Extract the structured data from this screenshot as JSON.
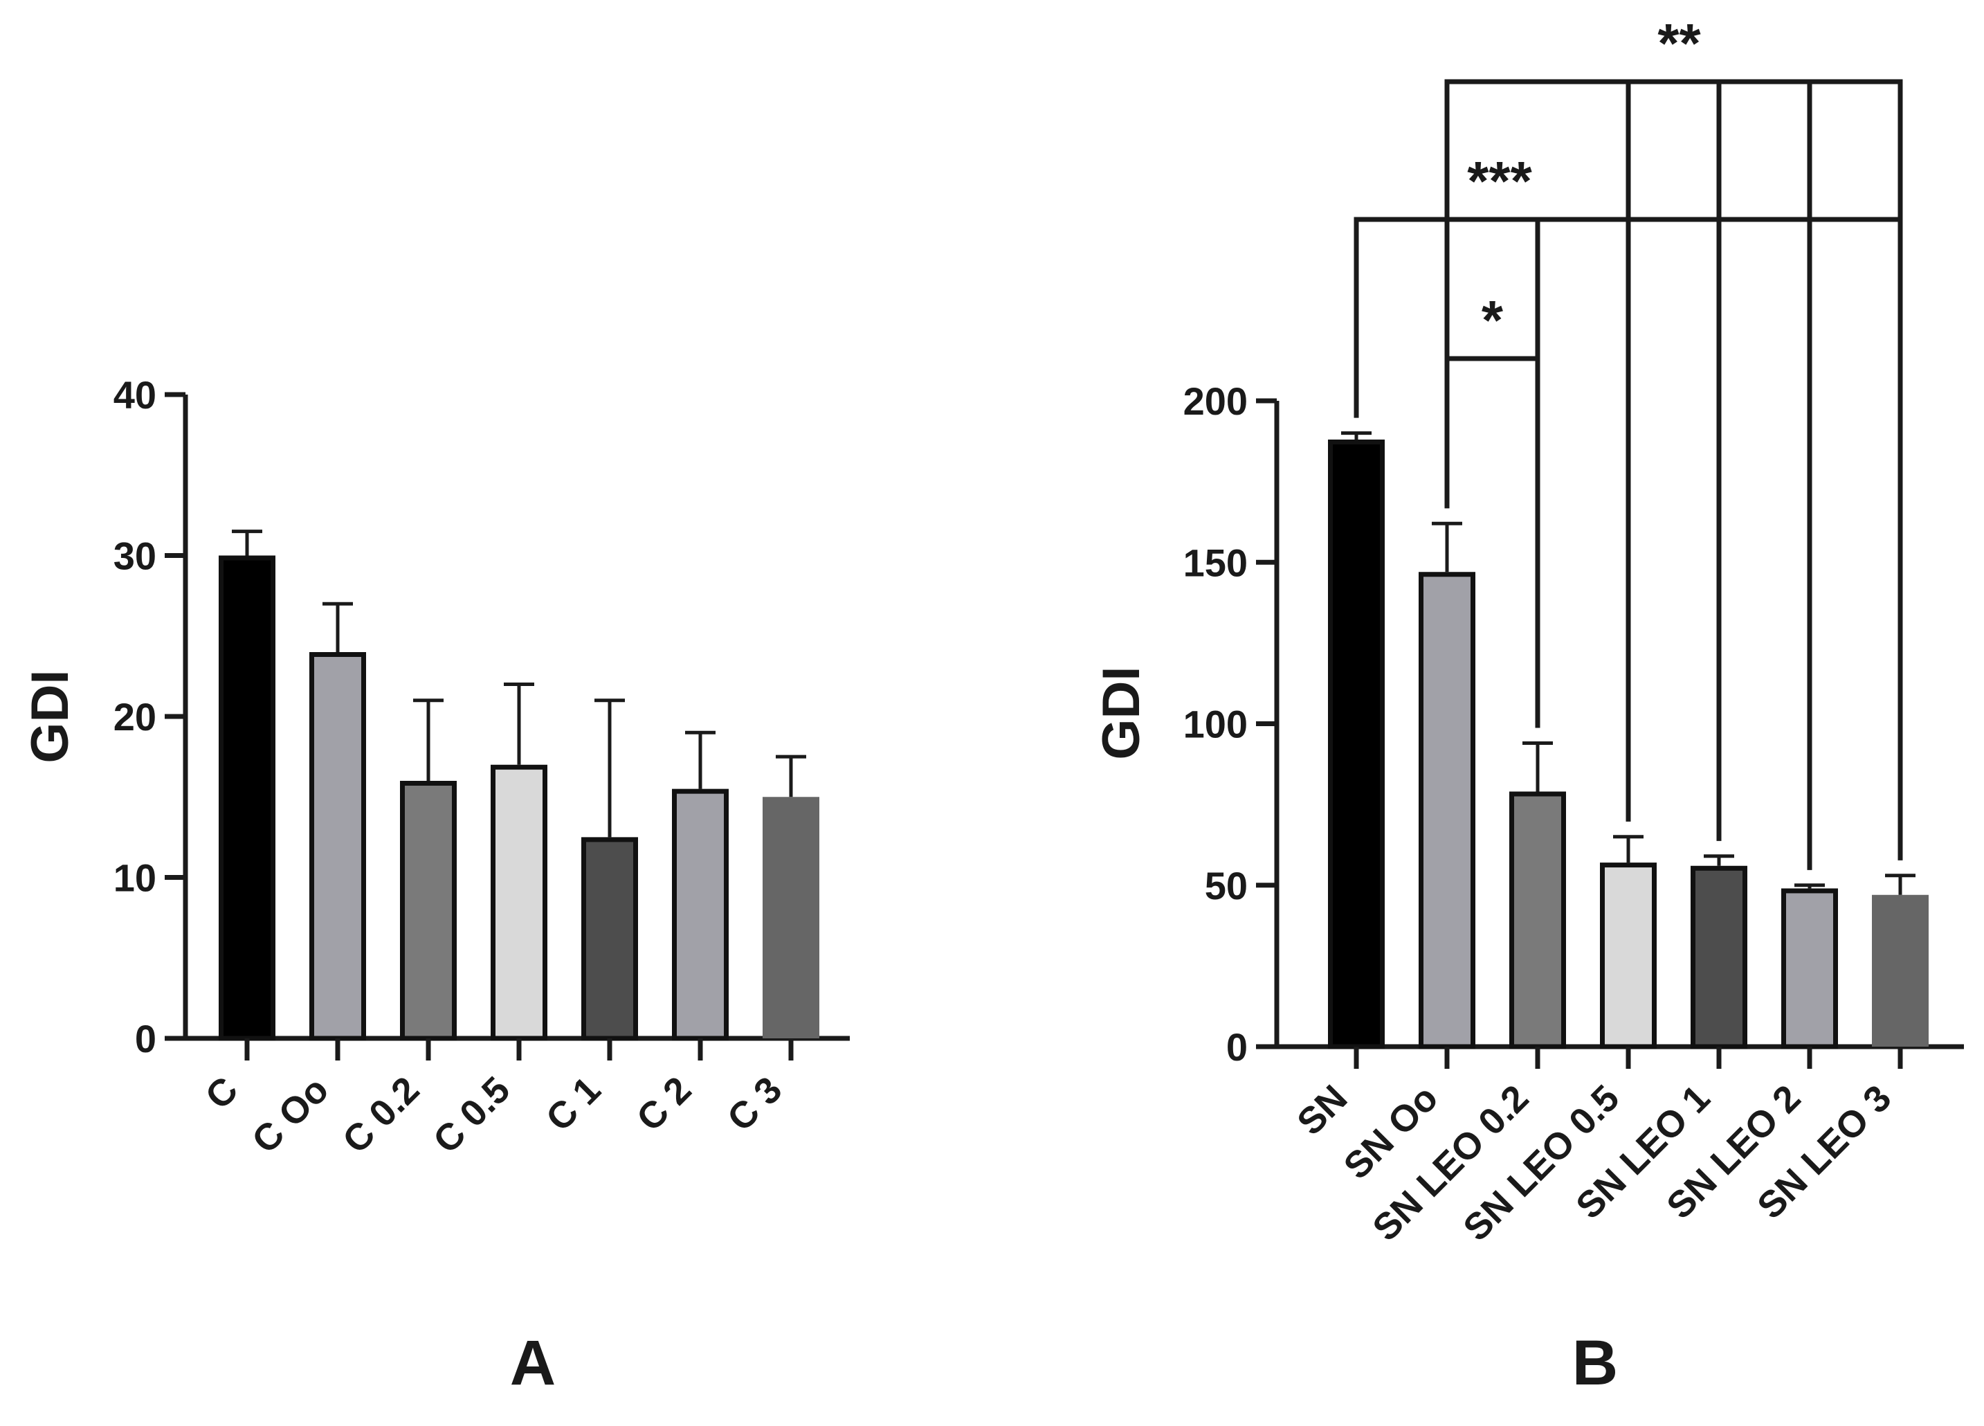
{
  "chart_data": [
    {
      "type": "bar",
      "panel": "A",
      "ylabel": "GDI",
      "xlabel": "",
      "ylim": [
        0,
        40
      ],
      "yticks": [
        0,
        10,
        20,
        30,
        40
      ],
      "categories": [
        "C",
        "C Oo",
        "C 0.2",
        "C 0.5",
        "C 1",
        "C 2",
        "C 3"
      ],
      "values": [
        30,
        24,
        16,
        17,
        12.5,
        15.5,
        15
      ],
      "errors": [
        1.5,
        3,
        5,
        5,
        8.5,
        3.5,
        2.5
      ],
      "colors": [
        "#000000",
        "#a1a1a8",
        "#7a7a7a",
        "#d9d9d9",
        "#4d4d4d",
        "#a1a1a8",
        "#666666"
      ],
      "outlined": [
        true,
        true,
        true,
        true,
        true,
        true,
        false
      ]
    },
    {
      "type": "bar",
      "panel": "B",
      "ylabel": "GDI",
      "xlabel": "",
      "ylim": [
        0,
        200
      ],
      "yticks": [
        0,
        50,
        100,
        150,
        200
      ],
      "categories": [
        "SN",
        "SN Oo",
        "SN LEO 0.2",
        "SN LEO 0.5",
        "SN LEO 1",
        "SN LEO 2",
        "SN LEO 3"
      ],
      "values": [
        188,
        147,
        79,
        57,
        56,
        49,
        47
      ],
      "errors": [
        2,
        15,
        15,
        8,
        3,
        1,
        6
      ],
      "colors": [
        "#000000",
        "#a1a1a8",
        "#7a7a7a",
        "#d9d9d9",
        "#4d4d4d",
        "#a1a1a8",
        "#666666"
      ],
      "outlined": [
        true,
        true,
        true,
        true,
        true,
        true,
        false
      ],
      "significance": [
        {
          "label": "*",
          "from": 1,
          "to": [
            2
          ]
        },
        {
          "label": "***",
          "from": 0,
          "to": [
            2,
            3,
            4,
            5,
            6
          ]
        },
        {
          "label": "**",
          "from": 1,
          "to": [
            3,
            4,
            5,
            6
          ]
        }
      ]
    }
  ]
}
